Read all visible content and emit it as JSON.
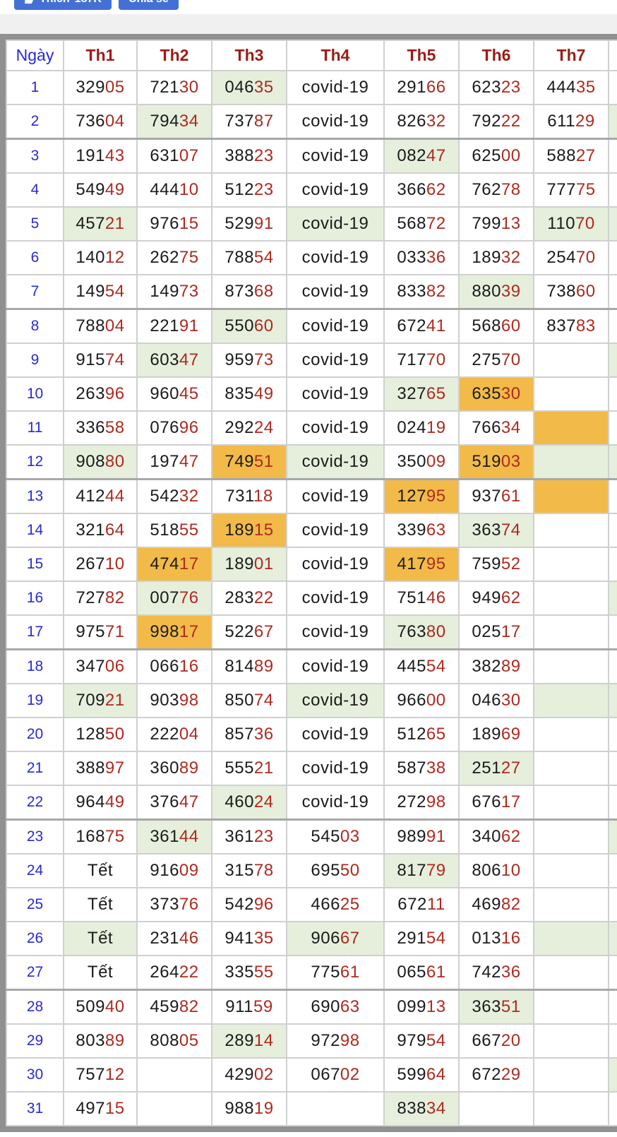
{
  "fb_bar": {
    "like_label": "Thích",
    "like_count": "187K",
    "share_label": "Chia sẻ",
    "like_icon": "thumbs-up",
    "button_color": "#4470d6"
  },
  "table": {
    "day_header": "Ngày",
    "headers": [
      "Th1",
      "Th2",
      "Th3",
      "Th4",
      "Th5",
      "Th6",
      "Th7"
    ],
    "highlight_colors": {
      "green": "#e5efdc",
      "orange": "#f2ba49"
    },
    "text_colors": {
      "number_head": "#1b1b1b",
      "number_tail": "#ae2a20",
      "day": "#2929d6",
      "header": "#9c1c15"
    },
    "rows": [
      {
        "day": "1",
        "values": [
          "32905",
          "72130",
          "04635",
          "covid-19",
          "29166",
          "62323",
          "44435"
        ],
        "hl": {
          "2": "g"
        },
        "extra": ""
      },
      {
        "day": "2",
        "values": [
          "73604",
          "79434",
          "73787",
          "covid-19",
          "82632",
          "79222",
          "61129"
        ],
        "hl": {
          "1": "g"
        },
        "extra": "g"
      },
      {
        "day": "3",
        "values": [
          "19143",
          "63107",
          "38823",
          "covid-19",
          "08247",
          "62500",
          "58827"
        ],
        "hl": {
          "4": "g"
        },
        "extra": ""
      },
      {
        "day": "4",
        "values": [
          "54949",
          "44410",
          "51223",
          "covid-19",
          "36662",
          "76278",
          "77775"
        ],
        "hl": {},
        "extra": ""
      },
      {
        "day": "5",
        "values": [
          "45721",
          "97615",
          "52991",
          "covid-19",
          "56872",
          "79913",
          "11070"
        ],
        "hl": {
          "0": "g",
          "3": "g",
          "6": "g"
        },
        "extra": "g"
      },
      {
        "day": "6",
        "values": [
          "14012",
          "26275",
          "78854",
          "covid-19",
          "03336",
          "18932",
          "25470"
        ],
        "hl": {},
        "extra": ""
      },
      {
        "day": "7",
        "values": [
          "14954",
          "14973",
          "87368",
          "covid-19",
          "83382",
          "88039",
          "73860"
        ],
        "hl": {
          "5": "g"
        },
        "extra": ""
      },
      {
        "day": "8",
        "values": [
          "78804",
          "22191",
          "55060",
          "covid-19",
          "67241",
          "56860",
          "83783"
        ],
        "hl": {
          "2": "g"
        },
        "extra": ""
      },
      {
        "day": "9",
        "values": [
          "91574",
          "60347",
          "95973",
          "covid-19",
          "71770",
          "27570",
          ""
        ],
        "hl": {
          "1": "g"
        },
        "extra": "g"
      },
      {
        "day": "10",
        "values": [
          "26396",
          "96045",
          "83549",
          "covid-19",
          "32765",
          "63530",
          ""
        ],
        "hl": {
          "4": "g",
          "5": "o"
        },
        "extra": ""
      },
      {
        "day": "11",
        "values": [
          "33658",
          "07696",
          "29224",
          "covid-19",
          "02419",
          "76634",
          ""
        ],
        "hl": {
          "6": "o"
        },
        "extra": ""
      },
      {
        "day": "12",
        "values": [
          "90880",
          "19747",
          "74951",
          "covid-19",
          "35009",
          "51903",
          ""
        ],
        "hl": {
          "0": "g",
          "2": "o",
          "3": "g",
          "5": "o",
          "6": "g"
        },
        "extra": "g"
      },
      {
        "day": "13",
        "values": [
          "41244",
          "54232",
          "73118",
          "covid-19",
          "12795",
          "93761",
          ""
        ],
        "hl": {
          "4": "o",
          "6": "o"
        },
        "extra": ""
      },
      {
        "day": "14",
        "values": [
          "32164",
          "51855",
          "18915",
          "covid-19",
          "33963",
          "36374",
          ""
        ],
        "hl": {
          "2": "o",
          "5": "g"
        },
        "extra": ""
      },
      {
        "day": "15",
        "values": [
          "26710",
          "47417",
          "18901",
          "covid-19",
          "41795",
          "75952",
          ""
        ],
        "hl": {
          "1": "o",
          "2": "g",
          "4": "o"
        },
        "extra": ""
      },
      {
        "day": "16",
        "values": [
          "72782",
          "00776",
          "28322",
          "covid-19",
          "75146",
          "94962",
          ""
        ],
        "hl": {
          "1": "g"
        },
        "extra": "g"
      },
      {
        "day": "17",
        "values": [
          "97571",
          "99817",
          "52267",
          "covid-19",
          "76380",
          "02517",
          ""
        ],
        "hl": {
          "1": "o",
          "4": "g"
        },
        "extra": ""
      },
      {
        "day": "18",
        "values": [
          "34706",
          "06616",
          "81489",
          "covid-19",
          "44554",
          "38289",
          ""
        ],
        "hl": {},
        "extra": ""
      },
      {
        "day": "19",
        "values": [
          "70921",
          "90398",
          "85074",
          "covid-19",
          "96600",
          "04630",
          ""
        ],
        "hl": {
          "0": "g",
          "3": "g",
          "6": "g"
        },
        "extra": "g"
      },
      {
        "day": "20",
        "values": [
          "12850",
          "22204",
          "85736",
          "covid-19",
          "51265",
          "18969",
          ""
        ],
        "hl": {},
        "extra": ""
      },
      {
        "day": "21",
        "values": [
          "38897",
          "36089",
          "55521",
          "covid-19",
          "58738",
          "25127",
          ""
        ],
        "hl": {
          "5": "g"
        },
        "extra": ""
      },
      {
        "day": "22",
        "values": [
          "96449",
          "37647",
          "46024",
          "covid-19",
          "27298",
          "67617",
          ""
        ],
        "hl": {
          "2": "g"
        },
        "extra": ""
      },
      {
        "day": "23",
        "values": [
          "16875",
          "36144",
          "36123",
          "54503",
          "98991",
          "34062",
          ""
        ],
        "hl": {
          "1": "g"
        },
        "extra": "g"
      },
      {
        "day": "24",
        "values": [
          "Tết",
          "91609",
          "31578",
          "69550",
          "81779",
          "80610",
          ""
        ],
        "hl": {
          "4": "g"
        },
        "extra": ""
      },
      {
        "day": "25",
        "values": [
          "Tết",
          "37376",
          "54296",
          "46625",
          "67211",
          "46982",
          ""
        ],
        "hl": {},
        "extra": ""
      },
      {
        "day": "26",
        "values": [
          "Tết",
          "23146",
          "94135",
          "90667",
          "29154",
          "01316",
          ""
        ],
        "hl": {
          "0": "g",
          "3": "g",
          "6": "g"
        },
        "extra": "g"
      },
      {
        "day": "27",
        "values": [
          "Tết",
          "26422",
          "33555",
          "77561",
          "06561",
          "74236",
          ""
        ],
        "hl": {},
        "extra": ""
      },
      {
        "day": "28",
        "values": [
          "50940",
          "45982",
          "91159",
          "69063",
          "09913",
          "36351",
          ""
        ],
        "hl": {
          "5": "g"
        },
        "extra": ""
      },
      {
        "day": "29",
        "values": [
          "80389",
          "80805",
          "28914",
          "97298",
          "97954",
          "66720",
          ""
        ],
        "hl": {
          "2": "g"
        },
        "extra": ""
      },
      {
        "day": "30",
        "values": [
          "75712",
          "",
          "42902",
          "06702",
          "59964",
          "67229",
          ""
        ],
        "hl": {},
        "extra": "g"
      },
      {
        "day": "31",
        "values": [
          "49715",
          "",
          "98819",
          "",
          "83834",
          "",
          ""
        ],
        "hl": {
          "4": "g"
        },
        "extra": ""
      }
    ]
  }
}
